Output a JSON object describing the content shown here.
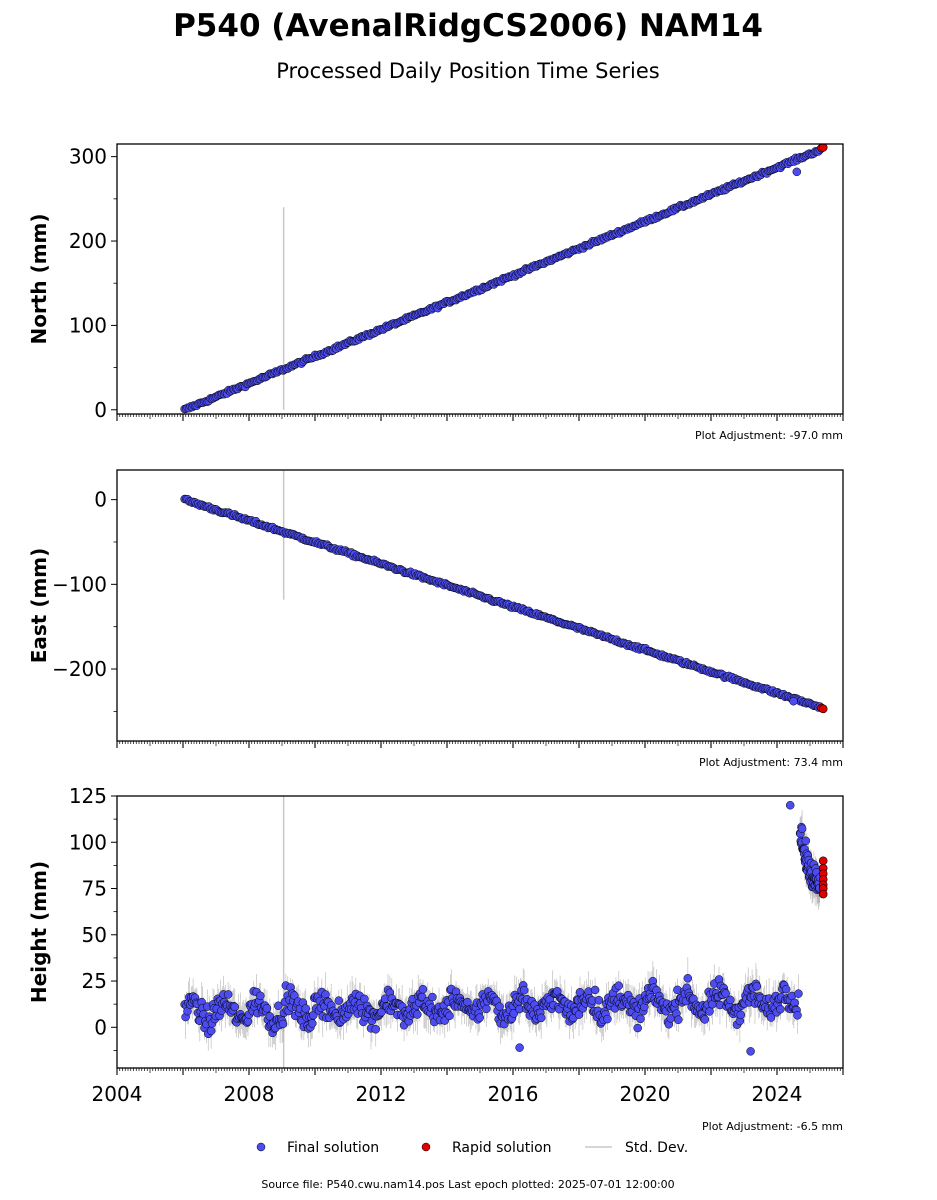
{
  "title": "P540 (AvenalRidgCS2006) NAM14",
  "subtitle": "Processed Daily Position Time Series",
  "footer": "Source file: P540.cwu.nam14.pos  Last epoch plotted: 2025-07-01 12:00:00",
  "legend": {
    "final": "Final solution",
    "rapid": "Rapid solution",
    "std": "Std. Dev."
  },
  "colors": {
    "final": "#4c4cf0",
    "rapid": "#e00000",
    "std": "#c8c8c8",
    "outline": "#000000"
  },
  "chart_data": [
    {
      "type": "scatter",
      "panel": "north",
      "ylabel": "North (mm)",
      "adjustment": "Plot Adjustment: -97.0 mm",
      "xlim": [
        2004,
        2026
      ],
      "ylim": [
        -5,
        315
      ],
      "yticks": [
        0,
        100,
        200,
        300
      ],
      "ytick_labels": [
        "0",
        "100",
        "200",
        "300"
      ],
      "grid": false,
      "outlier_std_line": {
        "x": 2009.05,
        "y": [
          0,
          240
        ]
      },
      "series": [
        {
          "name": "Final solution",
          "trend": {
            "x": [
              2006.05,
              2025.3
            ],
            "y": [
              0,
              308
            ]
          },
          "outliers": [
            {
              "x": 2024.6,
              "y": 282
            }
          ]
        },
        {
          "name": "Rapid solution",
          "points": [
            {
              "x": 2025.35,
              "y": 310
            },
            {
              "x": 2025.4,
              "y": 311
            }
          ]
        }
      ]
    },
    {
      "type": "scatter",
      "panel": "east",
      "ylabel": "East (mm)",
      "adjustment": "Plot Adjustment: 73.4 mm",
      "xlim": [
        2004,
        2026
      ],
      "ylim": [
        -285,
        35
      ],
      "yticks": [
        -200,
        -100,
        0
      ],
      "ytick_labels": [
        "−200",
        "−100",
        "0"
      ],
      "grid": false,
      "outlier_std_line": {
        "x": 2009.05,
        "y": [
          -118,
          35
        ]
      },
      "series": [
        {
          "name": "Final solution",
          "trend": {
            "x": [
              2006.05,
              2025.3
            ],
            "y": [
              0,
              -245
            ]
          },
          "outliers": [
            {
              "x": 2024.5,
              "y": -238
            }
          ]
        },
        {
          "name": "Rapid solution",
          "points": [
            {
              "x": 2025.35,
              "y": -246
            },
            {
              "x": 2025.4,
              "y": -247
            }
          ]
        }
      ]
    },
    {
      "type": "scatter",
      "panel": "height",
      "ylabel": "Height (mm)",
      "adjustment": "Plot Adjustment: -6.5 mm",
      "xlim": [
        2004,
        2026
      ],
      "ylim": [
        -22,
        125
      ],
      "yticks": [
        0,
        25,
        50,
        75,
        100,
        125
      ],
      "ytick_labels": [
        "0",
        "25",
        "50",
        "75",
        "100",
        "125"
      ],
      "xticks": [
        2004,
        2008,
        2012,
        2016,
        2020,
        2024
      ],
      "xtick_labels": [
        "2004",
        "2008",
        "2012",
        "2016",
        "2020",
        "2024"
      ],
      "grid": false,
      "outlier_std_line": {
        "x": 2009.05,
        "y": [
          -22,
          125
        ]
      },
      "series": [
        {
          "name": "Final solution",
          "segment1": {
            "x": [
              2006.05,
              2024.65
            ],
            "mean": 13,
            "noise": 9
          },
          "segment2": {
            "x": [
              2024.7,
              2025.3
            ],
            "y_start": 108,
            "y_end": 78
          },
          "outliers": [
            {
              "x": 2023.2,
              "y": -13
            },
            {
              "x": 2016.2,
              "y": -11
            },
            {
              "x": 2024.4,
              "y": 120
            }
          ]
        },
        {
          "name": "Rapid solution",
          "points": [
            {
              "x": 2025.4,
              "y": 90
            },
            {
              "x": 2025.4,
              "y": 86
            },
            {
              "x": 2025.4,
              "y": 83
            },
            {
              "x": 2025.4,
              "y": 80
            },
            {
              "x": 2025.4,
              "y": 77
            },
            {
              "x": 2025.4,
              "y": 75
            },
            {
              "x": 2025.4,
              "y": 72
            }
          ]
        }
      ]
    }
  ]
}
